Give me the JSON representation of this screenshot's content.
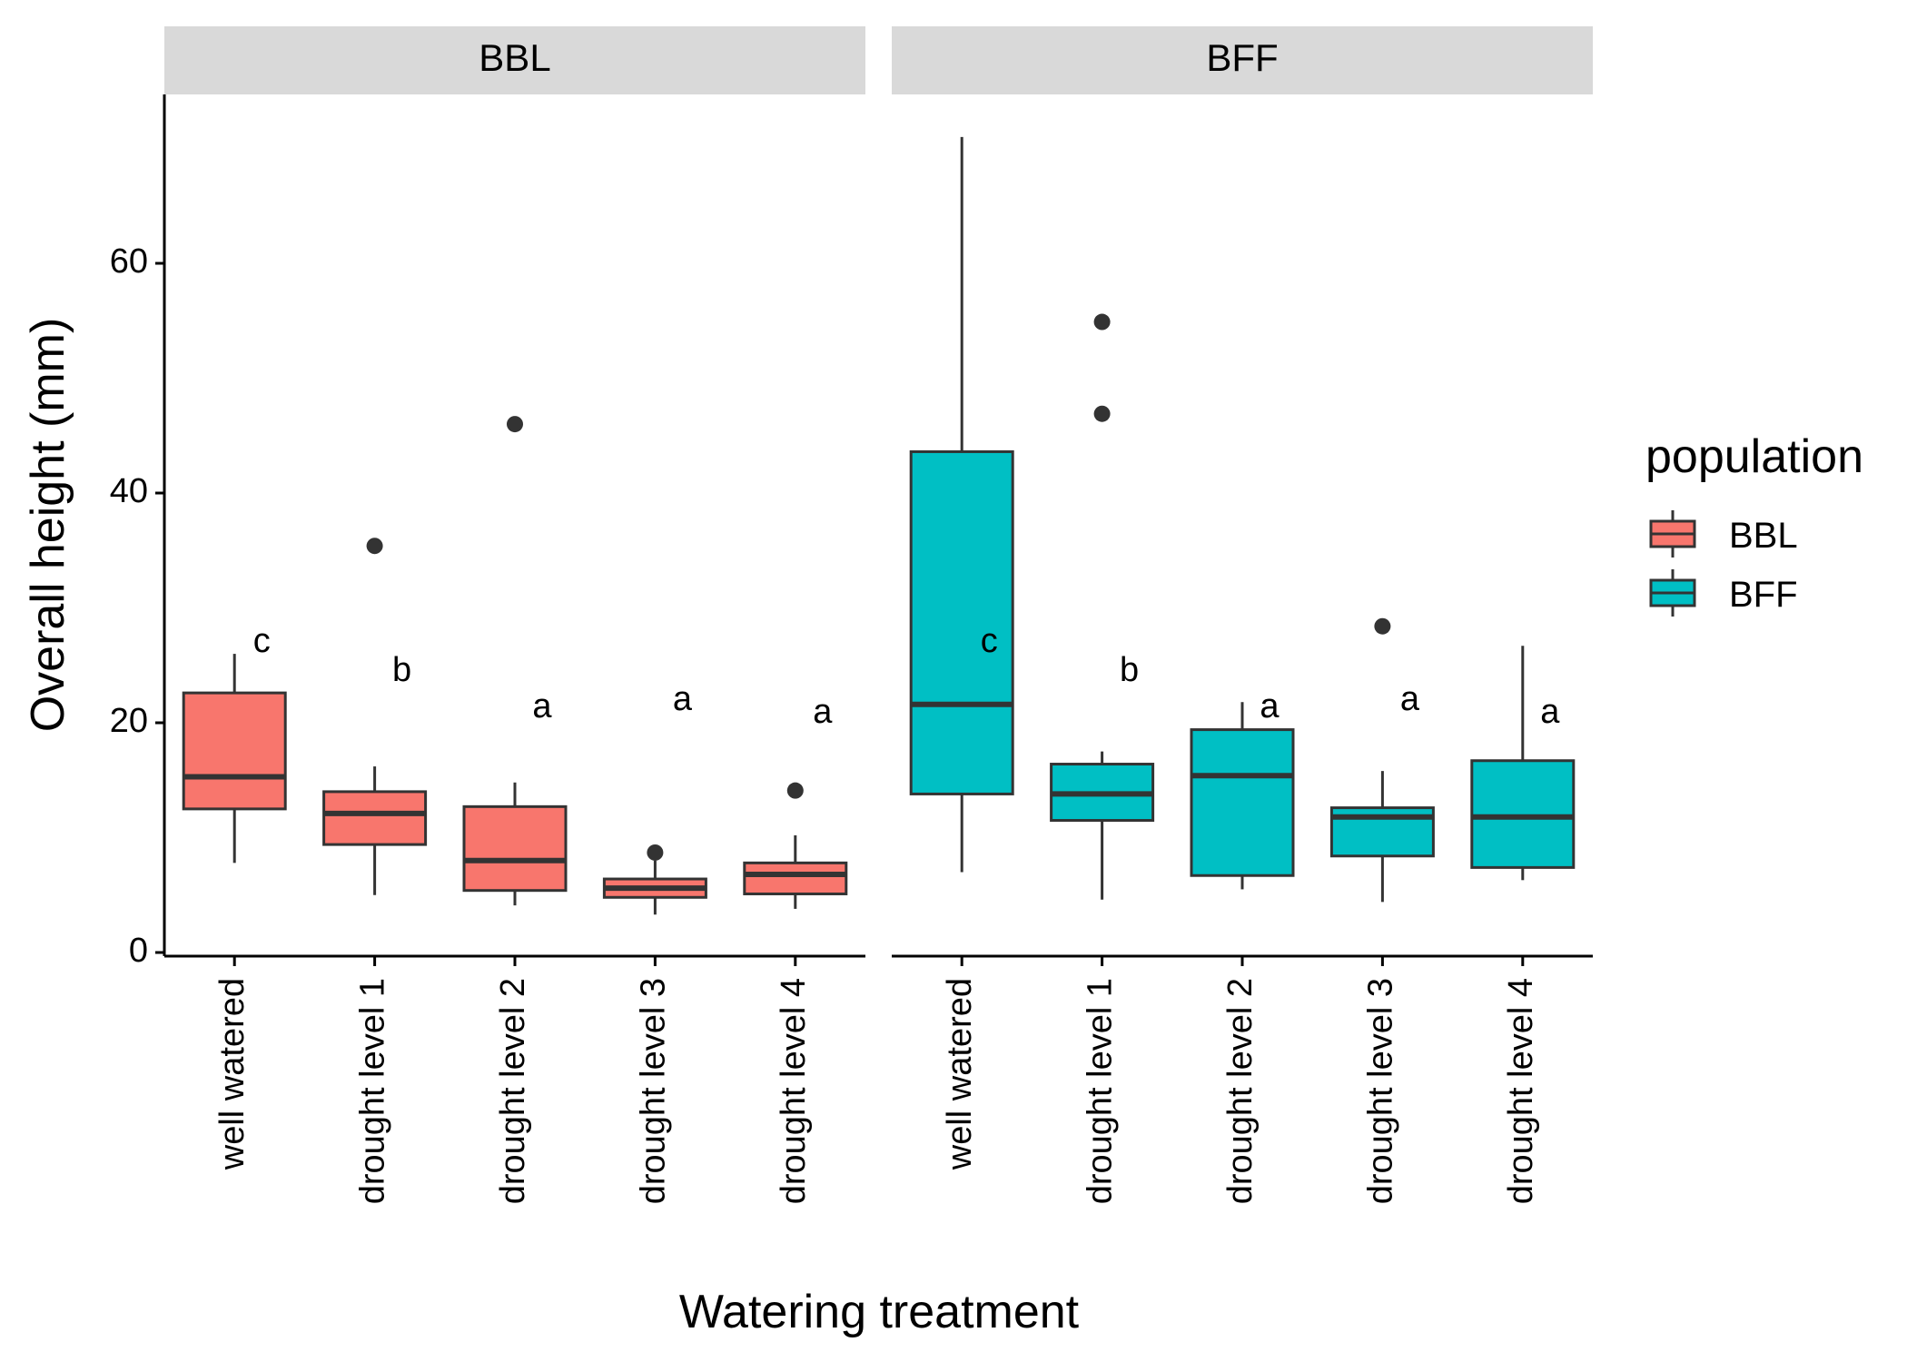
{
  "chart_data": {
    "type": "boxplot",
    "title": "",
    "xlabel": "Watering treatment",
    "ylabel": "Overall height (mm)",
    "ylim": [
      0,
      72
    ],
    "yticks": [
      0,
      20,
      40,
      60
    ],
    "categories": [
      "well watered",
      "drought level 1",
      "drought level 2",
      "drought level 3",
      "drought level 4"
    ],
    "legend": {
      "title": "population",
      "position": "right",
      "entries": [
        {
          "label": "BBL",
          "color": "#F8766D"
        },
        {
          "label": "BFF",
          "color": "#00BFC4"
        }
      ]
    },
    "facets": [
      {
        "name": "BBL",
        "color": "#F8766D",
        "boxes": [
          {
            "category": "well watered",
            "whisker_low": 7.8,
            "q1": 12.5,
            "median": 15.3,
            "q3": 22.6,
            "whisker_high": 26.0,
            "outliers": [],
            "letter": "c"
          },
          {
            "category": "drought level 1",
            "whisker_low": 5.0,
            "q1": 9.4,
            "median": 12.1,
            "q3": 14.0,
            "whisker_high": 16.2,
            "outliers": [
              35.4
            ],
            "letter": "b"
          },
          {
            "category": "drought level 2",
            "whisker_low": 4.1,
            "q1": 5.4,
            "median": 8.0,
            "q3": 12.7,
            "whisker_high": 14.8,
            "outliers": [
              46.0
            ],
            "letter": "a"
          },
          {
            "category": "drought level 3",
            "whisker_low": 3.3,
            "q1": 4.8,
            "median": 5.6,
            "q3": 6.4,
            "whisker_high": 8.0,
            "outliers": [
              8.7
            ],
            "letter": "a"
          },
          {
            "category": "drought level 4",
            "whisker_low": 3.8,
            "q1": 5.1,
            "median": 6.8,
            "q3": 7.8,
            "whisker_high": 10.2,
            "outliers": [
              14.1
            ],
            "letter": "a"
          }
        ]
      },
      {
        "name": "BFF",
        "color": "#00BFC4",
        "boxes": [
          {
            "category": "well watered",
            "whisker_low": 7.0,
            "q1": 13.8,
            "median": 21.6,
            "q3": 43.6,
            "whisker_high": 71.0,
            "outliers": [],
            "letter": "c"
          },
          {
            "category": "drought level 1",
            "whisker_low": 4.6,
            "q1": 11.5,
            "median": 13.8,
            "q3": 16.4,
            "whisker_high": 17.5,
            "outliers": [
              46.9,
              54.9
            ],
            "letter": "b"
          },
          {
            "category": "drought level 2",
            "whisker_low": 5.5,
            "q1": 6.7,
            "median": 15.4,
            "q3": 19.4,
            "whisker_high": 21.8,
            "outliers": [],
            "letter": "a"
          },
          {
            "category": "drought level 3",
            "whisker_low": 4.4,
            "q1": 8.4,
            "median": 11.8,
            "q3": 12.6,
            "whisker_high": 15.8,
            "outliers": [
              28.4
            ],
            "letter": "a"
          },
          {
            "category": "drought level 4",
            "whisker_low": 6.3,
            "q1": 7.4,
            "median": 11.8,
            "q3": 16.7,
            "whisker_high": 26.7,
            "outliers": [],
            "letter": "a"
          }
        ]
      }
    ]
  }
}
